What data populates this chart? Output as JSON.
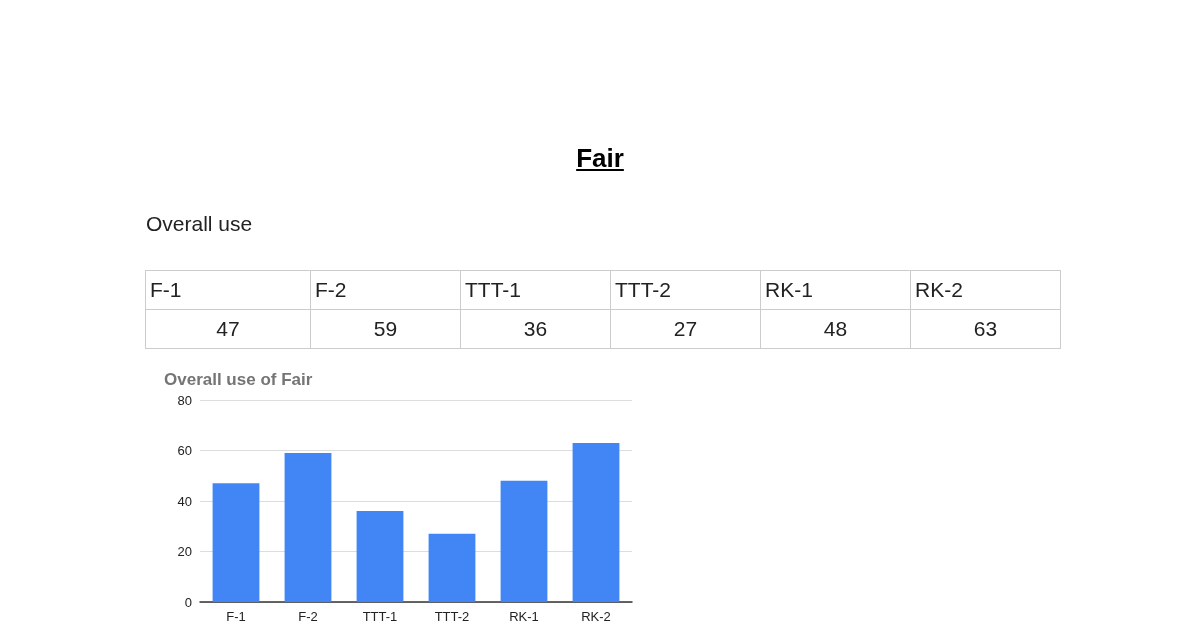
{
  "chart_data": [
    {
      "type": "other",
      "annotations": [
        "Fair",
        "Overall use"
      ],
      "categories": [
        "F-1",
        "F-2",
        "TTT-1",
        "TTT-2",
        "RK-1",
        "RK-2"
      ],
      "values": [
        47,
        59,
        36,
        27,
        48,
        63
      ],
      "data_labels": true
    },
    {
      "type": "bar",
      "title": "Overall use of Fair",
      "categories": [
        "F-1",
        "F-2",
        "TTT-1",
        "TTT-2",
        "RK-1",
        "RK-2"
      ],
      "values": [
        47,
        59,
        36,
        27,
        48,
        63
      ],
      "color": "#4285f4",
      "ylim": [
        0,
        80
      ],
      "yticks": [
        0,
        20,
        40,
        60,
        80
      ],
      "grid": "y"
    }
  ]
}
